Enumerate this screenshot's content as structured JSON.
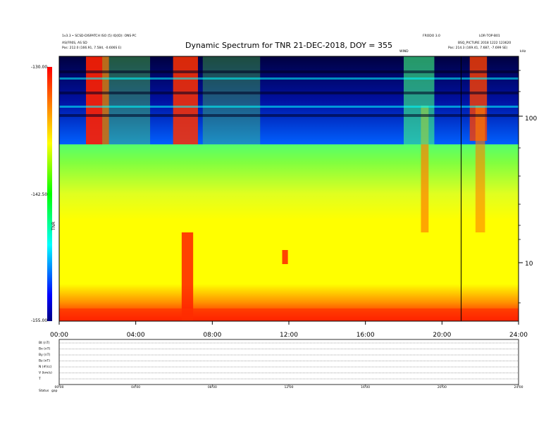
{
  "chart_data": {
    "type": "heatmap",
    "title": "Dynamic Spectrum for TNR 21-DEC-2018, DOY = 355",
    "x_ticks": [
      "00:00",
      "04:00",
      "08:00",
      "12:00",
      "16:00",
      "20:00",
      "24:00"
    ],
    "xlim": [
      "00:00",
      "24:00"
    ],
    "y_scale": "log",
    "y_ticks": [
      "100",
      "10"
    ],
    "y_unit": "kHz",
    "colorbar": {
      "ticks": [
        "-130.00",
        "-142.50",
        "-155.00"
      ],
      "range": [
        -155.0,
        -130.0
      ],
      "label": "TNR",
      "colors": [
        "#000080",
        "#0000ff",
        "#00ffff",
        "#00ff00",
        "#ffff00",
        "#ff8000",
        "#ff0000"
      ]
    },
    "header": {
      "left_line1": "1v3.3 • SCSD-DISPATCH ISO (5) IQ(ID): ONS·PC",
      "left_line2": "AS(FR6S, AS SD",
      "left_line3": "Pos: 212.0 (166.91, 7.584, -0.606S E)",
      "center_small": "WIND",
      "right_line1": "FRODO 3.0",
      "right_line2": "LOR·TOP·B01",
      "right_line3": "BSQ_PICTURE 2018 1222 123620",
      "right_line4": "Pos: 214.3 (169.41, 7.687, -7.699 SE)",
      "right_unit": "kHz"
    },
    "event_marker_time": "21:00",
    "timeseries_panel": {
      "row_labels": [
        "Bt (nT)",
        "Bx (nT)",
        "By (nT)",
        "Bz (nT)",
        "N (#/cc)",
        "V (km/s)",
        "T"
      ],
      "x_ticks": [
        "00:00",
        "04:00",
        "08:00",
        "12:00",
        "16:00",
        "20:00",
        "24:00"
      ],
      "bottom_label": "Status",
      "bottom_label_2": "gap"
    }
  }
}
